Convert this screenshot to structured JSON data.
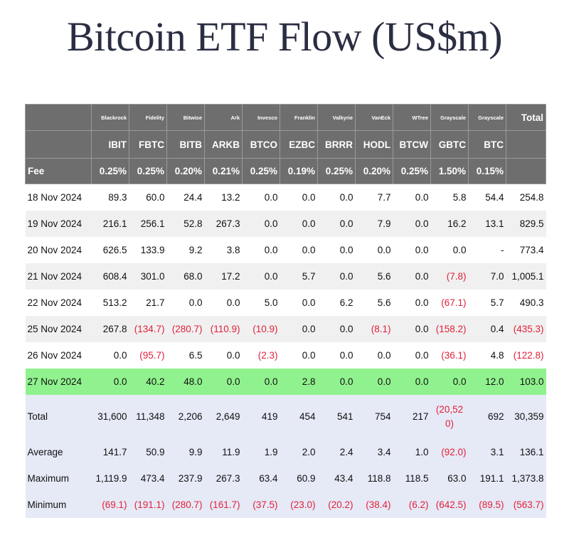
{
  "title": "Bitcoin ETF Flow (US$m)",
  "colors": {
    "header_bg": "#6e6e6e",
    "highlight_row": "#90f28e",
    "summary_bg": "#e6e9f6",
    "negative": "#e0213a"
  },
  "issuers": [
    "Blackrock",
    "Fidelity",
    "Bitwise",
    "Ark",
    "Invesco",
    "Franklin",
    "Valkyrie",
    "VanEck",
    "WTree",
    "Grayscale",
    "Grayscale"
  ],
  "tickers": [
    "IBIT",
    "FBTC",
    "BITB",
    "ARKB",
    "BTCO",
    "EZBC",
    "BRRR",
    "HODL",
    "BTCW",
    "GBTC",
    "BTC"
  ],
  "total_header": "Total",
  "fee_label": "Fee",
  "fees": [
    "0.25%",
    "0.25%",
    "0.20%",
    "0.21%",
    "0.25%",
    "0.19%",
    "0.25%",
    "0.20%",
    "0.25%",
    "1.50%",
    "0.15%"
  ],
  "rows": [
    {
      "date": "18 Nov 2024",
      "values": [
        "89.3",
        "60.0",
        "24.4",
        "13.2",
        "0.0",
        "0.0",
        "0.0",
        "7.7",
        "0.0",
        "5.8",
        "54.4",
        "254.8"
      ]
    },
    {
      "date": "19 Nov 2024",
      "values": [
        "216.1",
        "256.1",
        "52.8",
        "267.3",
        "0.0",
        "0.0",
        "0.0",
        "7.9",
        "0.0",
        "16.2",
        "13.1",
        "829.5"
      ]
    },
    {
      "date": "20 Nov 2024",
      "values": [
        "626.5",
        "133.9",
        "9.2",
        "3.8",
        "0.0",
        "0.0",
        "0.0",
        "0.0",
        "0.0",
        "0.0",
        "-",
        "773.4"
      ]
    },
    {
      "date": "21 Nov 2024",
      "values": [
        "608.4",
        "301.0",
        "68.0",
        "17.2",
        "0.0",
        "5.7",
        "0.0",
        "5.6",
        "0.0",
        "(7.8)",
        "7.0",
        "1,005.1"
      ]
    },
    {
      "date": "22 Nov 2024",
      "values": [
        "513.2",
        "21.7",
        "0.0",
        "0.0",
        "5.0",
        "0.0",
        "6.2",
        "5.6",
        "0.0",
        "(67.1)",
        "5.7",
        "490.3"
      ]
    },
    {
      "date": "25 Nov 2024",
      "values": [
        "267.8",
        "(134.7)",
        "(280.7)",
        "(110.9)",
        "(10.9)",
        "0.0",
        "0.0",
        "(8.1)",
        "0.0",
        "(158.2)",
        "0.4",
        "(435.3)"
      ]
    },
    {
      "date": "26 Nov 2024",
      "values": [
        "0.0",
        "(95.7)",
        "6.5",
        "0.0",
        "(2.3)",
        "0.0",
        "0.0",
        "0.0",
        "0.0",
        "(36.1)",
        "4.8",
        "(122.8)"
      ]
    },
    {
      "date": "27 Nov 2024",
      "values": [
        "0.0",
        "40.2",
        "48.0",
        "0.0",
        "0.0",
        "2.8",
        "0.0",
        "0.0",
        "0.0",
        "0.0",
        "12.0",
        "103.0"
      ],
      "highlight": true
    }
  ],
  "summary": [
    {
      "label": "Total",
      "values": [
        "31,600",
        "11,348",
        "2,206",
        "2,649",
        "419",
        "454",
        "541",
        "754",
        "217",
        "(20,520)",
        "692",
        "30,359"
      ]
    },
    {
      "label": "Average",
      "values": [
        "141.7",
        "50.9",
        "9.9",
        "11.9",
        "1.9",
        "2.0",
        "2.4",
        "3.4",
        "1.0",
        "(92.0)",
        "3.1",
        "136.1"
      ]
    },
    {
      "label": "Maximum",
      "values": [
        "1,119.9",
        "473.4",
        "237.9",
        "267.3",
        "63.4",
        "60.9",
        "43.4",
        "118.8",
        "118.5",
        "63.0",
        "191.1",
        "1,373.8"
      ]
    },
    {
      "label": "Minimum",
      "values": [
        "(69.1)",
        "(191.1)",
        "(280.7)",
        "(161.7)",
        "(37.5)",
        "(23.0)",
        "(20.2)",
        "(38.4)",
        "(6.2)",
        "(642.5)",
        "(89.5)",
        "(563.7)"
      ]
    }
  ]
}
